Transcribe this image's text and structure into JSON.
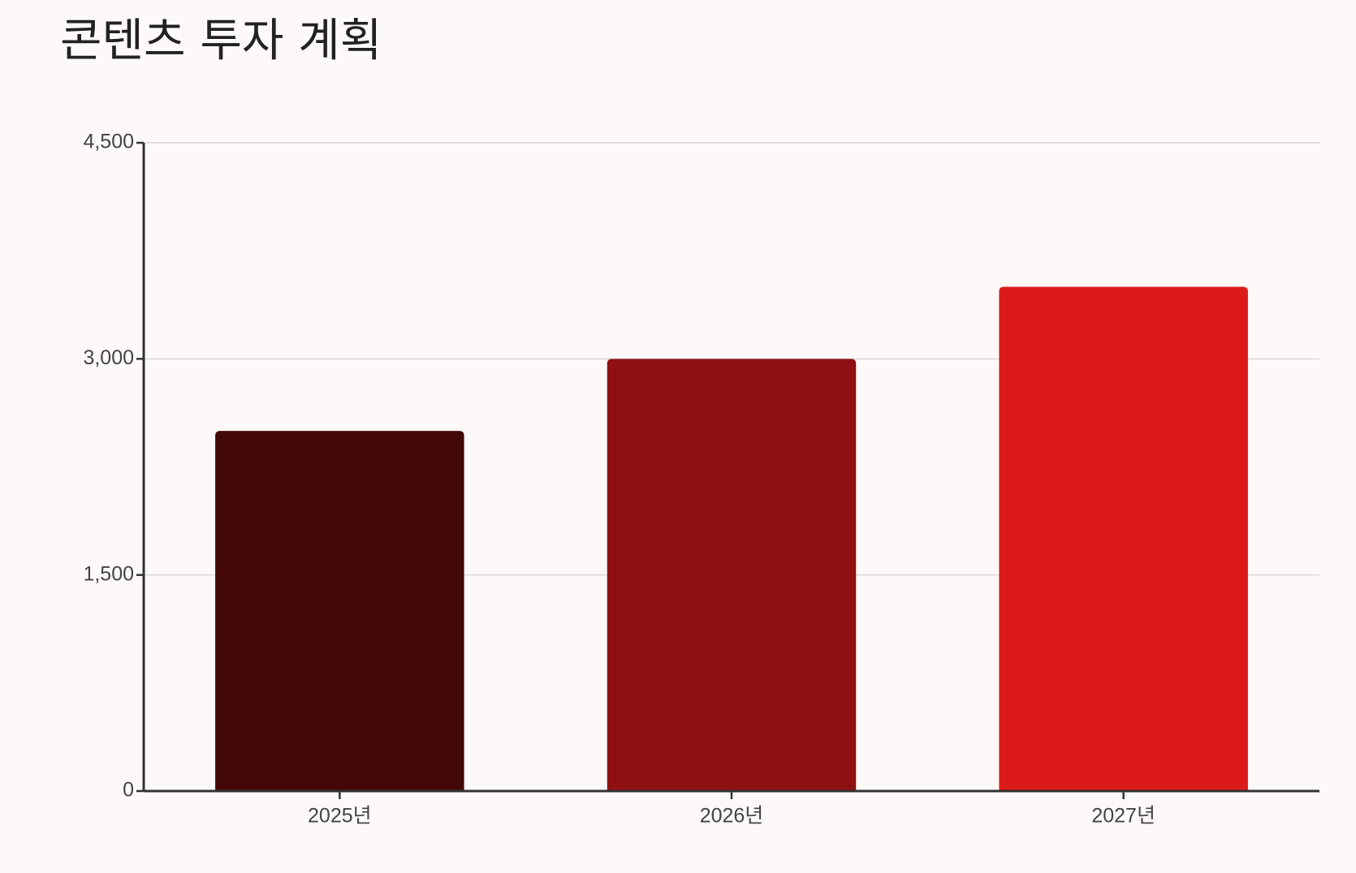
{
  "chart_data": {
    "type": "bar",
    "title": "콘텐츠 투자 계획",
    "categories": [
      "2025년",
      "2026년",
      "2027년"
    ],
    "values": [
      2500,
      3000,
      3500
    ],
    "colors": [
      "#43080a",
      "#8f1012",
      "#dc1a1a"
    ],
    "ylim": [
      0,
      4500
    ],
    "yticks": [
      0,
      {
        "value": 1500,
        "label": "1,500"
      },
      {
        "value": 3000,
        "label": "3,000"
      },
      {
        "value": 4500,
        "label": "4,500"
      }
    ],
    "grid": true
  }
}
